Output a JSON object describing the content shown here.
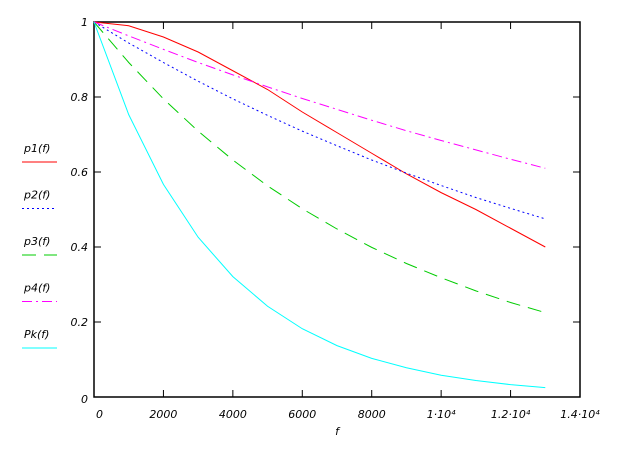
{
  "chart_data": {
    "type": "line",
    "title": "",
    "xlabel": "f",
    "ylabel": "",
    "xlim": [
      0,
      14000
    ],
    "ylim": [
      0,
      1
    ],
    "x_ticks": [
      0,
      2000,
      4000,
      6000,
      8000,
      10000,
      12000,
      14000
    ],
    "x_tick_labels": [
      "0",
      "2000",
      "4000",
      "6000",
      "8000",
      "1·10⁴",
      "1.2·10⁴",
      "1.4·10⁴"
    ],
    "y_ticks": [
      0,
      0.2,
      0.4,
      0.6,
      0.8,
      1
    ],
    "y_tick_labels": [
      "0",
      "0.2",
      "0.4",
      "0.6",
      "0.8",
      "1"
    ],
    "grid": false,
    "legend_placement": "left",
    "x": [
      0,
      1000,
      2000,
      3000,
      4000,
      5000,
      6000,
      7000,
      8000,
      9000,
      10000,
      11000,
      12000,
      13000
    ],
    "series": [
      {
        "name": "p1(f)",
        "color": "#ff0000",
        "style": "solid",
        "values": [
          1,
          0.99,
          0.96,
          0.92,
          0.87,
          0.82,
          0.76,
          0.705,
          0.65,
          0.595,
          0.545,
          0.5,
          0.45,
          0.4
        ]
      },
      {
        "name": "p2(f)",
        "color": "#0000ff",
        "style": "dotted",
        "values": [
          1,
          0.944,
          0.892,
          0.842,
          0.795,
          0.751,
          0.709,
          0.67,
          0.632,
          0.597,
          0.564,
          0.532,
          0.503,
          0.475
        ]
      },
      {
        "name": "p3(f)",
        "color": "#00cc00",
        "style": "dashed",
        "values": [
          1,
          0.892,
          0.795,
          0.709,
          0.632,
          0.563,
          0.502,
          0.448,
          0.399,
          0.356,
          0.318,
          0.283,
          0.252,
          0.225
        ]
      },
      {
        "name": "p4(f)",
        "color": "#ff00ff",
        "style": "dashdot",
        "values": [
          1,
          0.963,
          0.927,
          0.892,
          0.859,
          0.827,
          0.796,
          0.767,
          0.738,
          0.71,
          0.684,
          0.659,
          0.634,
          0.61
        ]
      },
      {
        "name": "Pk(f)",
        "color": "#00ffff",
        "style": "solid",
        "values": [
          1,
          0.753,
          0.567,
          0.426,
          0.321,
          0.242,
          0.182,
          0.137,
          0.103,
          0.078,
          0.058,
          0.044,
          0.033,
          0.025
        ]
      }
    ]
  }
}
